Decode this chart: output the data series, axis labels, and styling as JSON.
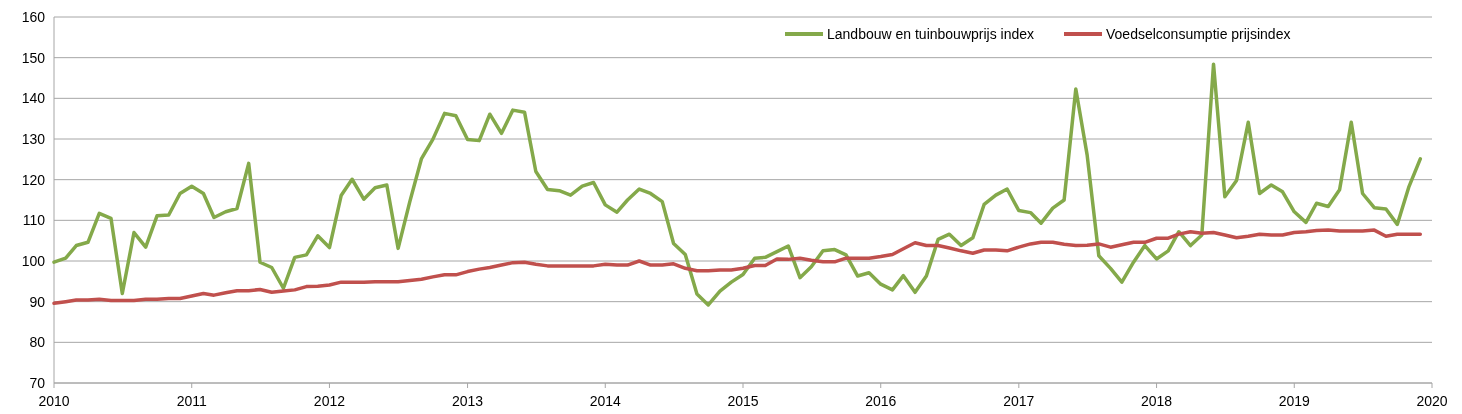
{
  "chart_data": {
    "type": "line",
    "legend": "top right",
    "grid": "y",
    "line_style": "solid",
    "marker": "none",
    "x": [
      "2010-01",
      "2010-02",
      "2010-03",
      "2010-04",
      "2010-05",
      "2010-06",
      "2010-07",
      "2010-08",
      "2010-09",
      "2010-10",
      "2010-11",
      "2010-12",
      "2011-01",
      "2011-02",
      "2011-03",
      "2011-04",
      "2011-05",
      "2011-06",
      "2011-07",
      "2011-08",
      "2011-09",
      "2011-10",
      "2011-11",
      "2011-12",
      "2012-01",
      "2012-02",
      "2012-03",
      "2012-04",
      "2012-05",
      "2012-06",
      "2012-07",
      "2012-08",
      "2012-09",
      "2012-10",
      "2012-11",
      "2012-12",
      "2013-01",
      "2013-02",
      "2013-03",
      "2013-04",
      "2013-05",
      "2013-06",
      "2013-07",
      "2013-08",
      "2013-09",
      "2013-10",
      "2013-11",
      "2013-12",
      "2014-01",
      "2014-02",
      "2014-03",
      "2014-04",
      "2014-05",
      "2014-06",
      "2014-07",
      "2014-08",
      "2014-09",
      "2014-10",
      "2014-11",
      "2014-12",
      "2015-01",
      "2015-02",
      "2015-03",
      "2015-04",
      "2015-05",
      "2015-06",
      "2015-07",
      "2015-08",
      "2015-09",
      "2015-10",
      "2015-11",
      "2015-12",
      "2016-01",
      "2016-02",
      "2016-03",
      "2016-04",
      "2016-05",
      "2016-06",
      "2016-07",
      "2016-08",
      "2016-09",
      "2016-10",
      "2016-11",
      "2016-12",
      "2017-01",
      "2017-02",
      "2017-03",
      "2017-04",
      "2017-05",
      "2017-06",
      "2017-07",
      "2017-08",
      "2017-09",
      "2017-10",
      "2017-11",
      "2017-12",
      "2018-01",
      "2018-02",
      "2018-03",
      "2018-04",
      "2018-05",
      "2018-06",
      "2018-07",
      "2018-08",
      "2018-09",
      "2018-10",
      "2018-11",
      "2018-12",
      "2019-01",
      "2019-02",
      "2019-03",
      "2019-04",
      "2019-05",
      "2019-06",
      "2019-07",
      "2019-08",
      "2019-09",
      "2019-10",
      "2019-11",
      "2019-12"
    ],
    "xlim": [
      "2010",
      "2020"
    ],
    "xticks": [
      "2010",
      "2011",
      "2012",
      "2013",
      "2014",
      "2015",
      "2016",
      "2017",
      "2018",
      "2019",
      "2020"
    ],
    "ylim": [
      70,
      160
    ],
    "yticks": [
      70,
      80,
      90,
      100,
      110,
      120,
      130,
      140,
      150,
      160
    ],
    "series": [
      {
        "name": "Landbouw en tuinbouwprijs index",
        "color": "#84a94a",
        "values": [
          99.7,
          100.7,
          103.8,
          104.6,
          111.7,
          110.5,
          92.0,
          107.0,
          103.4,
          111.1,
          111.3,
          116.6,
          118.4,
          116.6,
          110.7,
          112.1,
          112.9,
          124.0,
          99.7,
          98.4,
          93.3,
          100.9,
          101.5,
          106.2,
          103.3,
          116.1,
          120.1,
          115.2,
          118.0,
          118.7,
          103.1,
          114.6,
          125.2,
          129.9,
          136.3,
          135.7,
          129.9,
          129.6,
          136.1,
          131.4,
          137.1,
          136.6,
          122.0,
          117.6,
          117.3,
          116.2,
          118.4,
          119.3,
          113.8,
          112.0,
          115.0,
          117.7,
          116.6,
          114.6,
          104.3,
          101.6,
          91.9,
          89.2,
          92.6,
          94.8,
          96.7,
          100.7,
          100.9,
          102.3,
          103.7,
          95.9,
          98.6,
          102.5,
          102.8,
          101.5,
          96.3,
          97.1,
          94.3,
          92.9,
          96.4,
          92.3,
          96.3,
          105.3,
          106.6,
          103.8,
          105.7,
          113.9,
          116.2,
          117.7,
          112.4,
          111.9,
          109.3,
          113.0,
          115.0,
          142.3,
          126.1,
          101.3,
          98.2,
          94.8,
          99.7,
          103.8,
          100.5,
          102.5,
          107.2,
          103.8,
          106.4,
          148.4,
          115.8,
          119.8,
          134.1,
          116.6,
          118.7,
          117.0,
          112.1,
          109.5,
          114.2,
          113.4,
          117.5,
          134.1,
          116.6,
          113.1,
          112.8,
          109.0,
          118.3,
          125.1
        ]
      },
      {
        "name": "Voedselconsumptie prijsindex",
        "color": "#c0504d",
        "values": [
          89.6,
          90.0,
          90.4,
          90.4,
          90.6,
          90.3,
          90.3,
          90.3,
          90.6,
          90.6,
          90.8,
          90.8,
          91.4,
          92.0,
          91.6,
          92.2,
          92.7,
          92.7,
          93.0,
          92.3,
          92.6,
          92.9,
          93.7,
          93.8,
          94.1,
          94.8,
          94.8,
          94.8,
          94.9,
          94.9,
          94.9,
          95.2,
          95.5,
          96.1,
          96.6,
          96.6,
          97.4,
          98.0,
          98.4,
          99.0,
          99.6,
          99.7,
          99.2,
          98.8,
          98.8,
          98.8,
          98.8,
          98.8,
          99.2,
          99.0,
          99.0,
          100.0,
          99.0,
          99.0,
          99.3,
          98.2,
          97.6,
          97.6,
          97.8,
          97.8,
          98.2,
          98.9,
          98.9,
          100.5,
          100.4,
          100.7,
          100.2,
          99.8,
          99.8,
          100.7,
          100.7,
          100.7,
          101.1,
          101.6,
          103.0,
          104.5,
          103.8,
          103.8,
          103.2,
          102.5,
          101.9,
          102.7,
          102.7,
          102.5,
          103.4,
          104.2,
          104.6,
          104.6,
          104.1,
          103.8,
          103.9,
          104.2,
          103.4,
          104.0,
          104.6,
          104.6,
          105.6,
          105.6,
          106.6,
          107.2,
          106.8,
          107.0,
          106.4,
          105.7,
          106.1,
          106.6,
          106.4,
          106.4,
          107.0,
          107.2,
          107.5,
          107.6,
          107.4,
          107.4,
          107.4,
          107.6,
          106.1,
          106.6,
          106.6,
          106.6
        ]
      }
    ]
  }
}
